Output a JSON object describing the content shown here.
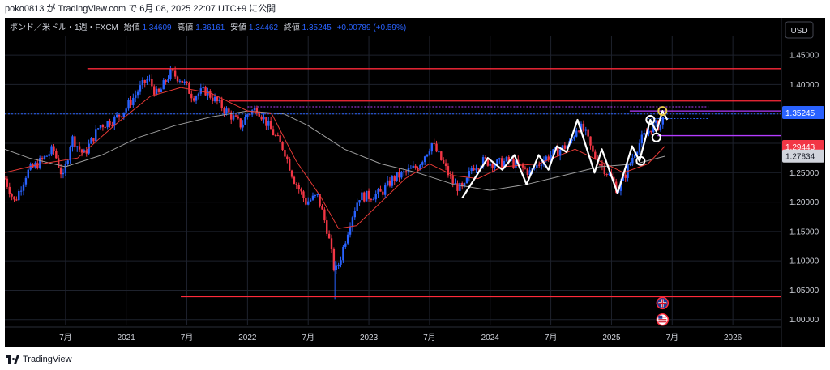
{
  "header": {
    "text": "poko0813 が TradingView.com で 6月 08, 2025 22:07 UTC+9 に公開"
  },
  "footer": {
    "brand": "TradingView"
  },
  "colors": {
    "background": "#000000",
    "up_candle": "#2962ff",
    "down_candle": "#f23645",
    "ma_fast": "#e53935",
    "ma_slow": "#9e9e9e",
    "pattern": "#ffffff",
    "hline": "#ff2a3a",
    "purple": "#b43cff"
  },
  "chart_data": {
    "type": "candlestick",
    "legend": {
      "symbol": "ポンド／米ドル・1週・FXCM",
      "open_label": "始値",
      "open": "1.34609",
      "high_label": "高値",
      "high": "1.36161",
      "low_label": "安値",
      "low": "1.34462",
      "close_label": "終値",
      "close": "1.35245",
      "change": "+0.00789 (+0.59%)"
    },
    "currency": "USD",
    "y_ticks": [
      "1.45000",
      "1.40000",
      "1.35000",
      "1.30000",
      "1.25000",
      "1.20000",
      "1.15000",
      "1.10000",
      "1.05000",
      "1.00000"
    ],
    "ylim": [
      0.99,
      1.475
    ],
    "x_ticks": [
      {
        "label": "7月",
        "t": 2020.5
      },
      {
        "label": "2021",
        "t": 2021.0
      },
      {
        "label": "7月",
        "t": 2021.5
      },
      {
        "label": "2022",
        "t": 2022.0
      },
      {
        "label": "7月",
        "t": 2022.5
      },
      {
        "label": "2023",
        "t": 2023.0
      },
      {
        "label": "7月",
        "t": 2023.5
      },
      {
        "label": "2024",
        "t": 2024.0
      },
      {
        "label": "7月",
        "t": 2024.5
      },
      {
        "label": "2025",
        "t": 2025.0
      },
      {
        "label": "7月",
        "t": 2025.5
      },
      {
        "label": "2026",
        "t": 2026.0
      }
    ],
    "xlim": [
      2020.0,
      2026.4
    ],
    "price_labels": [
      {
        "value": 1.35245,
        "text": "1.35245",
        "color": "#2962ff"
      },
      {
        "value": 1.29443,
        "text": "1.29443",
        "color": "#f23645"
      },
      {
        "value": 1.27834,
        "text": "1.27834",
        "color": "#d1d4dc"
      }
    ],
    "anchors": [
      [
        2020.0,
        1.24
      ],
      [
        2020.08,
        1.2
      ],
      [
        2020.18,
        1.25
      ],
      [
        2020.3,
        1.27
      ],
      [
        2020.4,
        1.29
      ],
      [
        2020.48,
        1.24
      ],
      [
        2020.55,
        1.31
      ],
      [
        2020.65,
        1.28
      ],
      [
        2020.78,
        1.33
      ],
      [
        2020.9,
        1.34
      ],
      [
        2021.0,
        1.36
      ],
      [
        2021.1,
        1.39
      ],
      [
        2021.18,
        1.41
      ],
      [
        2021.26,
        1.38
      ],
      [
        2021.36,
        1.42
      ],
      [
        2021.45,
        1.41
      ],
      [
        2021.55,
        1.38
      ],
      [
        2021.65,
        1.39
      ],
      [
        2021.75,
        1.37
      ],
      [
        2021.85,
        1.35
      ],
      [
        2021.95,
        1.33
      ],
      [
        2022.0,
        1.35
      ],
      [
        2022.08,
        1.36
      ],
      [
        2022.17,
        1.33
      ],
      [
        2022.3,
        1.29
      ],
      [
        2022.38,
        1.24
      ],
      [
        2022.48,
        1.2
      ],
      [
        2022.58,
        1.21
      ],
      [
        2022.66,
        1.15
      ],
      [
        2022.72,
        1.08
      ],
      [
        2022.76,
        1.1
      ],
      [
        2022.85,
        1.17
      ],
      [
        2022.92,
        1.21
      ],
      [
        2023.0,
        1.21
      ],
      [
        2023.1,
        1.215
      ],
      [
        2023.2,
        1.24
      ],
      [
        2023.3,
        1.25
      ],
      [
        2023.4,
        1.26
      ],
      [
        2023.46,
        1.28
      ],
      [
        2023.52,
        1.3
      ],
      [
        2023.6,
        1.27
      ],
      [
        2023.7,
        1.23
      ],
      [
        2023.78,
        1.22
      ],
      [
        2023.85,
        1.26
      ],
      [
        2023.95,
        1.27
      ],
      [
        2024.05,
        1.265
      ],
      [
        2024.15,
        1.27
      ],
      [
        2024.25,
        1.26
      ],
      [
        2024.33,
        1.25
      ],
      [
        2024.42,
        1.27
      ],
      [
        2024.5,
        1.28
      ],
      [
        2024.58,
        1.29
      ],
      [
        2024.66,
        1.3
      ],
      [
        2024.72,
        1.33
      ],
      [
        2024.78,
        1.32
      ],
      [
        2024.85,
        1.28
      ],
      [
        2024.93,
        1.26
      ],
      [
        2025.0,
        1.24
      ],
      [
        2025.05,
        1.22
      ],
      [
        2025.12,
        1.25
      ],
      [
        2025.2,
        1.29
      ],
      [
        2025.26,
        1.31
      ],
      [
        2025.34,
        1.33
      ],
      [
        2025.4,
        1.33
      ],
      [
        2025.44,
        1.35
      ]
    ],
    "ma_fast": [
      [
        2020.0,
        1.25
      ],
      [
        2020.3,
        1.265
      ],
      [
        2020.6,
        1.275
      ],
      [
        2020.9,
        1.33
      ],
      [
        2021.2,
        1.38
      ],
      [
        2021.45,
        1.395
      ],
      [
        2021.7,
        1.385
      ],
      [
        2022.0,
        1.355
      ],
      [
        2022.2,
        1.35
      ],
      [
        2022.4,
        1.27
      ],
      [
        2022.6,
        1.21
      ],
      [
        2022.75,
        1.155
      ],
      [
        2022.9,
        1.16
      ],
      [
        2023.1,
        1.2
      ],
      [
        2023.3,
        1.24
      ],
      [
        2023.5,
        1.265
      ],
      [
        2023.7,
        1.245
      ],
      [
        2023.9,
        1.24
      ],
      [
        2024.1,
        1.26
      ],
      [
        2024.4,
        1.265
      ],
      [
        2024.7,
        1.29
      ],
      [
        2024.9,
        1.27
      ],
      [
        2025.1,
        1.25
      ],
      [
        2025.3,
        1.265
      ],
      [
        2025.44,
        1.295
      ]
    ],
    "ma_slow": [
      [
        2020.0,
        1.29
      ],
      [
        2020.2,
        1.275
      ],
      [
        2020.5,
        1.26
      ],
      [
        2020.8,
        1.28
      ],
      [
        2021.1,
        1.31
      ],
      [
        2021.4,
        1.33
      ],
      [
        2021.7,
        1.345
      ],
      [
        2022.0,
        1.355
      ],
      [
        2022.3,
        1.35
      ],
      [
        2022.5,
        1.33
      ],
      [
        2022.8,
        1.29
      ],
      [
        2023.1,
        1.265
      ],
      [
        2023.4,
        1.25
      ],
      [
        2023.7,
        1.23
      ],
      [
        2024.0,
        1.22
      ],
      [
        2024.3,
        1.23
      ],
      [
        2024.6,
        1.245
      ],
      [
        2024.9,
        1.26
      ],
      [
        2025.2,
        1.265
      ],
      [
        2025.44,
        1.278
      ]
    ],
    "hlines": [
      {
        "y": 1.427,
        "x1": 2020.68,
        "x2": 2026.4,
        "color": "#ff2a3a"
      },
      {
        "y": 1.372,
        "x1": 2021.85,
        "x2": 2026.4,
        "color": "#ff2a3a"
      },
      {
        "y": 1.039,
        "x1": 2021.45,
        "x2": 2026.4,
        "color": "#ff2a3a"
      },
      {
        "y": 1.355,
        "x1": 2025.15,
        "x2": 2026.4,
        "color": "#b43cff"
      },
      {
        "y": 1.313,
        "x1": 2025.38,
        "x2": 2026.4,
        "color": "#b43cff"
      }
    ],
    "dotted_lines": [
      {
        "y": 1.362,
        "x1": 2022.0,
        "x2": 2025.8,
        "color": "#b43cff"
      },
      {
        "y": 1.35,
        "x1": 2020.0,
        "x2": 2026.4,
        "color": "#2962ff"
      },
      {
        "y": 1.342,
        "x1": 2025.3,
        "x2": 2025.8,
        "color": "#2962ff"
      }
    ],
    "pattern": [
      [
        2023.77,
        1.207
      ],
      [
        2023.98,
        1.275
      ],
      [
        2024.1,
        1.255
      ],
      [
        2024.2,
        1.28
      ],
      [
        2024.3,
        1.23
      ],
      [
        2024.4,
        1.28
      ],
      [
        2024.48,
        1.255
      ],
      [
        2024.55,
        1.295
      ],
      [
        2024.63,
        1.285
      ],
      [
        2024.72,
        1.34
      ],
      [
        2024.86,
        1.25
      ],
      [
        2024.92,
        1.29
      ],
      [
        2025.05,
        1.215
      ],
      [
        2025.17,
        1.295
      ],
      [
        2025.23,
        1.27
      ],
      [
        2025.32,
        1.34
      ],
      [
        2025.37,
        1.32
      ],
      [
        2025.42,
        1.355
      ],
      [
        2025.46,
        1.34
      ]
    ],
    "circles": [
      [
        2025.24,
        1.27
      ],
      [
        2025.32,
        1.34
      ],
      [
        2025.37,
        1.31
      ],
      [
        2025.42,
        1.355
      ]
    ],
    "flags": [
      {
        "t": 2025.42,
        "y": 1.028,
        "type": "uk"
      },
      {
        "t": 2025.42,
        "y": 1.0,
        "type": "us"
      }
    ]
  }
}
